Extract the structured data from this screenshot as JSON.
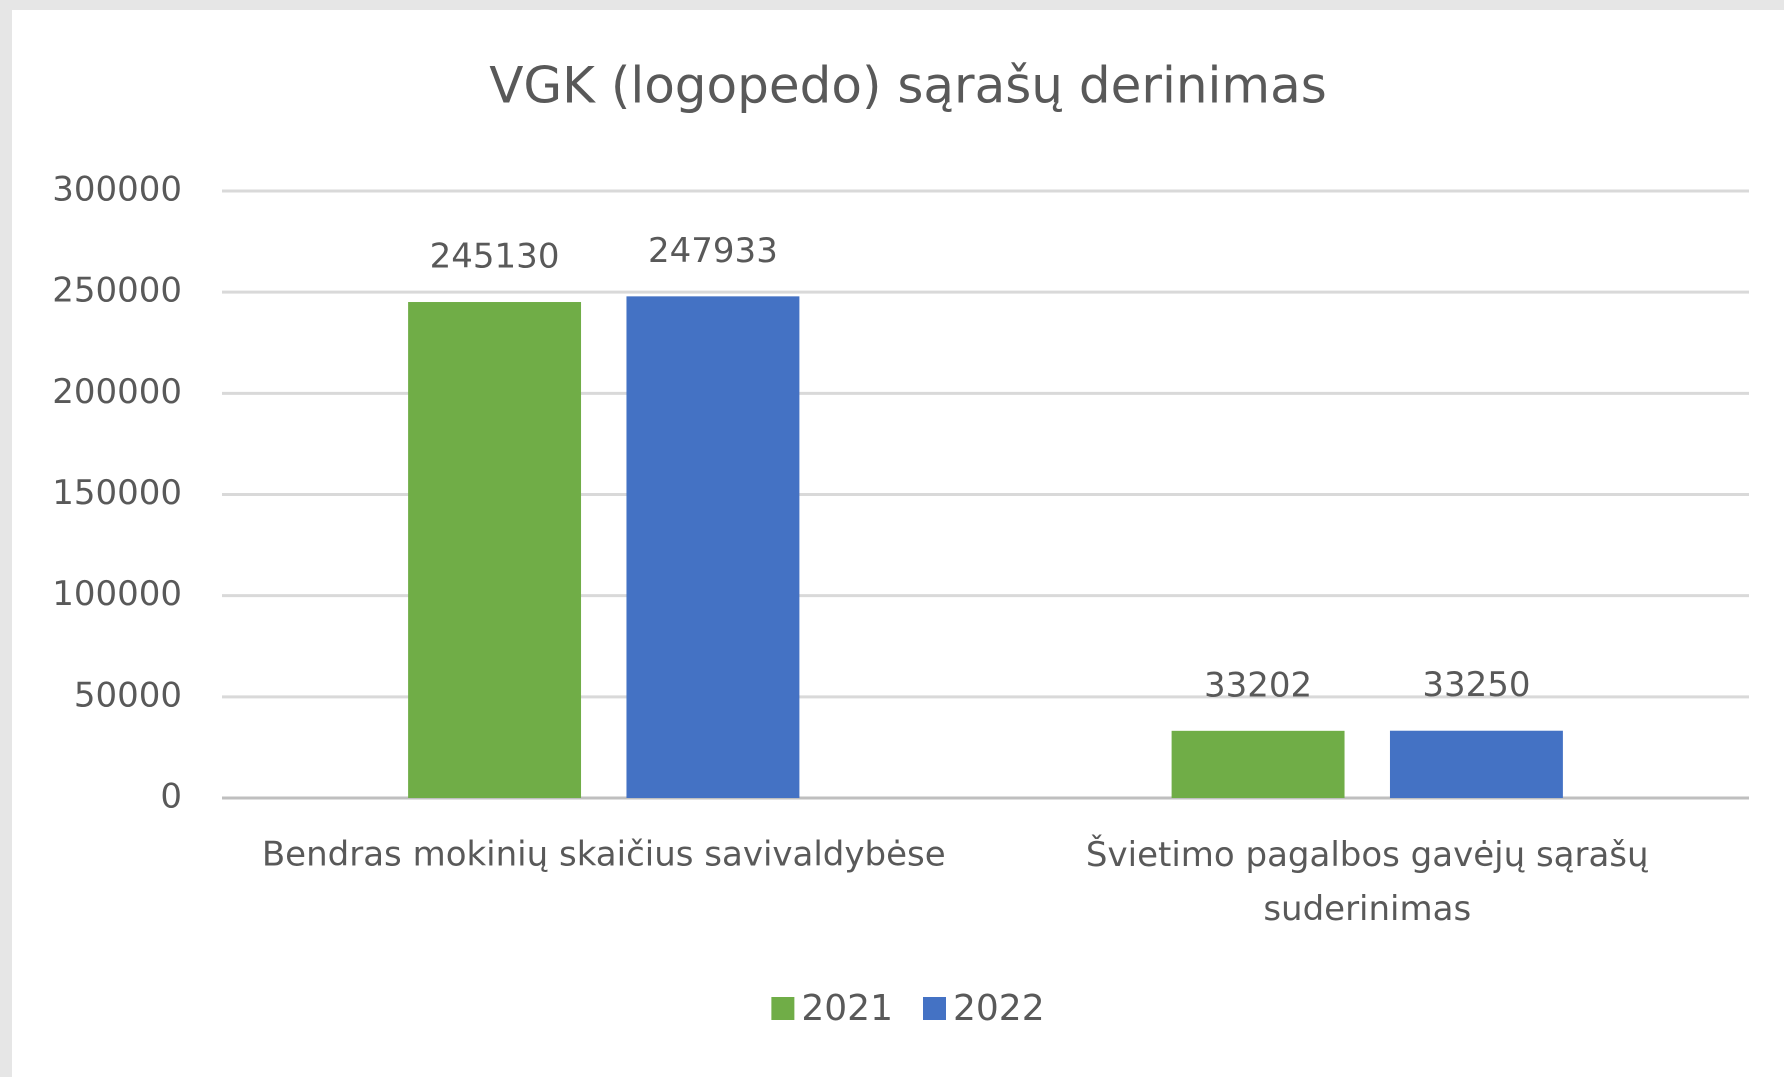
{
  "chart_data": {
    "type": "bar",
    "title": "VGK (logopedo) sąrašų derinimas",
    "categories": [
      "Bendras mokinių skaičius savivaldybėse",
      "Švietimo pagalbos gavėjų sąrašų suderinimas"
    ],
    "series": [
      {
        "name": "2021",
        "color": "#70ad47",
        "values": [
          245130,
          33202
        ]
      },
      {
        "name": "2022",
        "color": "#4472c4",
        "values": [
          247933,
          33250
        ]
      }
    ],
    "ylim": [
      0,
      300000
    ],
    "yticks": [
      0,
      50000,
      100000,
      150000,
      200000,
      250000,
      300000
    ],
    "grid": true,
    "data_labels": true,
    "legend": "bottom"
  }
}
